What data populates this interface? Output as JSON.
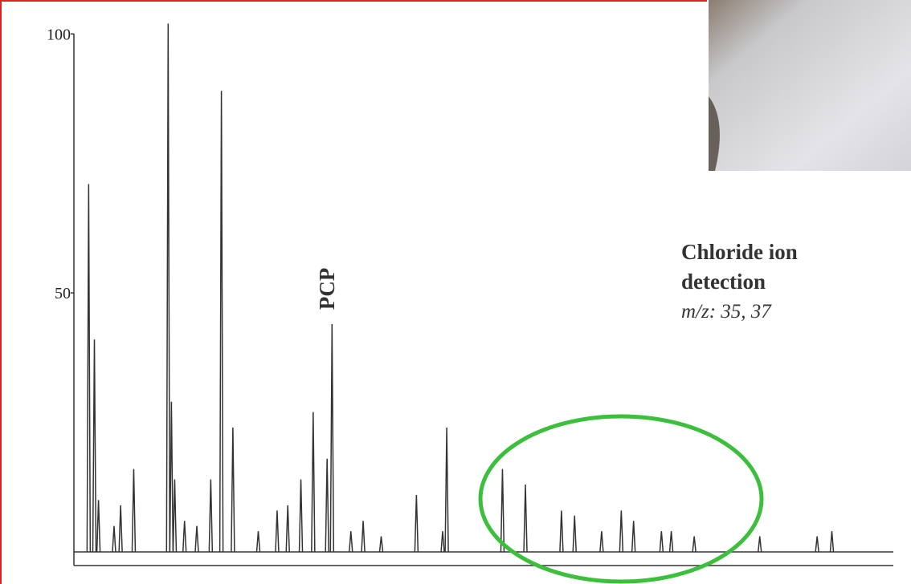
{
  "chart_data": {
    "type": "peaks",
    "peak_label": "PCP",
    "note": [
      "Chloride ion",
      "detection",
      "m/z: 35, 37"
    ],
    "color": "#333333",
    "x": [
      1.8,
      2.5,
      3.0,
      4.9,
      5.7,
      7.3,
      11.5,
      11.9,
      12.3,
      13.5,
      15.0,
      16.7,
      18.0,
      19.4,
      22.5,
      24.8,
      26.1,
      27.7,
      29.2,
      30.9,
      31.5,
      33.8,
      35.3,
      37.5,
      41.8,
      45.0,
      45.5,
      52.3,
      55.1,
      59.5,
      61.1,
      64.4,
      66.8,
      68.3,
      71.7,
      72.9,
      75.7,
      83.7,
      90.7,
      92.5
    ],
    "values": [
      71,
      41,
      10,
      5,
      9,
      16,
      102,
      29,
      14,
      6,
      5,
      14,
      89,
      24,
      4,
      8,
      9,
      14,
      27,
      18,
      44,
      4,
      6,
      3,
      11,
      4,
      24,
      16,
      13,
      8,
      7,
      4,
      8,
      6,
      4,
      4,
      3,
      3,
      3,
      4
    ],
    "xlim": [
      0,
      100
    ],
    "ylim": [
      0,
      105
    ],
    "yticks": [
      50,
      100
    ]
  }
}
